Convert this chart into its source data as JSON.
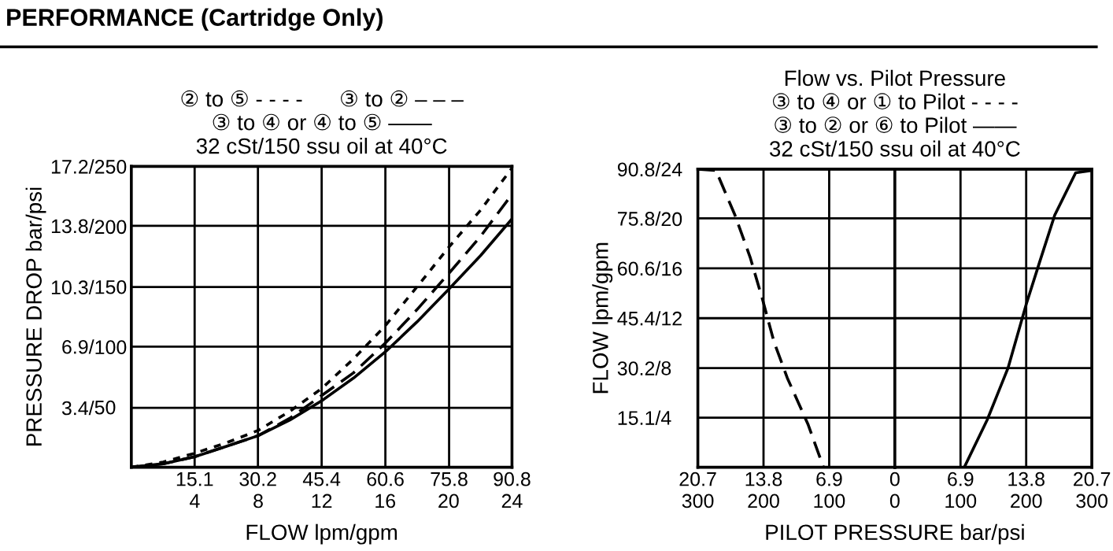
{
  "chart_data": [
    {
      "type": "line",
      "title": "② to ⑤ - - - -      ③ to ② – – –\n③ to ④ or ④ to ⑤ ——\n32 cSt/150 ssu oil at 40°C",
      "annotations": [
        "PERFORMANCE (Cartridge Only)"
      ],
      "xlabel": "FLOW lpm/gpm",
      "ylabel": "PRESSURE DROP bar/psi",
      "x": [
        0,
        7.6,
        15.1,
        22.7,
        30.2,
        37.8,
        45.4,
        53,
        60.6,
        68.1,
        75.8,
        83.3,
        90.8
      ],
      "series": [
        {
          "color": "#000000",
          "line_style": "dotted",
          "values": [
            0,
            0.3,
            0.8,
            1.4,
            2.1,
            3.2,
            4.5,
            6.2,
            8.1,
            10.3,
            12.6,
            14.7,
            17.1
          ]
        },
        {
          "color": "#000000",
          "line_style": "dashed",
          "values": [
            0,
            0.2,
            0.6,
            1.2,
            1.8,
            2.8,
            4.1,
            5.4,
            7.1,
            9,
            11.1,
            13.2,
            15.6
          ]
        },
        {
          "color": "#000000",
          "line_style": "solid",
          "values": [
            0,
            0.2,
            0.6,
            1.2,
            1.8,
            2.7,
            3.8,
            5.1,
            6.6,
            8.3,
            10.2,
            12.1,
            14.2
          ]
        }
      ],
      "xlim": [
        0,
        90.8
      ],
      "xticks": [
        15.1,
        30.2,
        45.4,
        60.6,
        75.8,
        90.8
      ],
      "x2lim": [
        0,
        24
      ],
      "x2ticks": [
        4,
        8,
        12,
        16,
        20,
        24
      ],
      "ylim": [
        0,
        17.2
      ],
      "yticks": [
        {
          "value": 3.4,
          "label": "3.4/"
        },
        {
          "value": 6.9,
          "label": "6.9/"
        },
        {
          "value": 10.3,
          "label": "10.3/"
        },
        {
          "value": 13.8,
          "label": "13.8/"
        },
        {
          "value": 17.2,
          "label": "17.2/"
        }
      ],
      "y2lim": [
        0,
        250
      ],
      "y2ticks": [
        50,
        100,
        150,
        200,
        250
      ],
      "grid": true
    },
    {
      "type": "line",
      "title": "Flow vs. Pilot Pressure",
      "subtitle": "③ to ④ or ① to Pilot - - - -\n③ to ② or ⑥ to Pilot ——\n32 cSt/150 ssu oil at 40°C",
      "xlabel": "PILOT PRESSURE bar/psi",
      "ylabel": "FLOW lpm/gpm",
      "series": [
        {
          "color": "#000000",
          "line_style": "dashed",
          "x": [
            20.7,
            18.8,
            16.8,
            15.2,
            13.9,
            12.7,
            11.3,
            9.1,
            7.5
          ],
          "values": [
            90.8,
            90.4,
            76.8,
            63.9,
            51.1,
            38.2,
            27.2,
            12.9,
            0
          ]
        }
      ],
      "xlim": [
        20.7,
        0
      ],
      "xticks": [
        20.7,
        13.8,
        6.9,
        0
      ],
      "x2lim": [
        300,
        0
      ],
      "x2ticks": [
        300,
        200,
        100,
        0
      ],
      "ylim": [
        0,
        90.8
      ],
      "yticks": [
        {
          "value": 15.1,
          "label": "15.1/"
        },
        {
          "value": 30.2,
          "label": "30.2/"
        },
        {
          "value": 45.4,
          "label": "45.4/"
        },
        {
          "value": 60.6,
          "label": "60.6/"
        },
        {
          "value": 75.8,
          "label": "75.8/"
        },
        {
          "value": 90.8,
          "label": "90.8/"
        }
      ],
      "y2lim": [
        0,
        24
      ],
      "y2ticks": [
        4,
        8,
        12,
        16,
        20,
        24
      ],
      "grid": true
    },
    {
      "type": "line",
      "tick_labels": "x",
      "series": [
        {
          "color": "#000000",
          "line_style": "solid",
          "x": [
            7.3,
            9.7,
            11.9,
            13.8,
            15.2,
            16.8,
            19,
            20.7
          ],
          "values": [
            0,
            14.4,
            30.3,
            49.6,
            62.4,
            76.8,
            89.7,
            90.4
          ]
        }
      ],
      "xlim": [
        0,
        20.7
      ],
      "xticks": [
        6.9,
        13.8,
        20.7
      ],
      "x2lim": [
        0,
        300
      ],
      "x2ticks": [
        100,
        200,
        300
      ],
      "ylim": [
        0,
        90.8
      ],
      "yticks": [
        15.1,
        30.2,
        45.4,
        60.6,
        75.8,
        90.8
      ],
      "grid": true
    }
  ]
}
